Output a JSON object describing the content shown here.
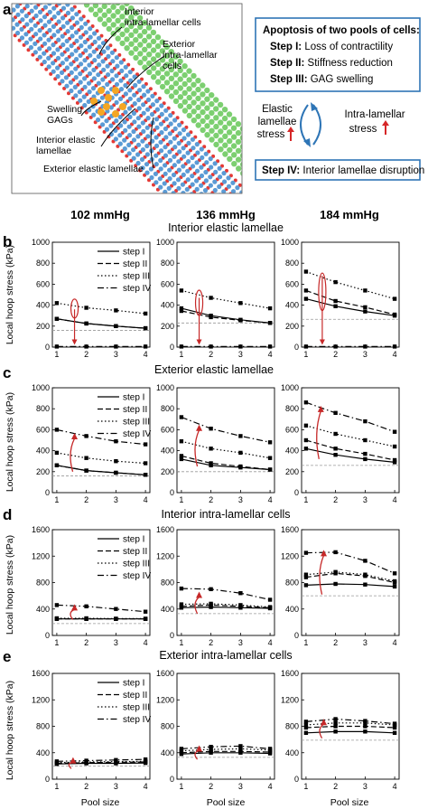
{
  "panel_a": {
    "letter": "a",
    "diagram_labels": {
      "interior_cells": [
        "Interior",
        "intra-lamellar cells"
      ],
      "exterior_cells": [
        "Exterior",
        "intra-lamellar",
        "cells"
      ],
      "swelling": [
        "Swelling",
        "GAGs"
      ],
      "interior_lamellae": [
        "Interior elastic",
        "lamellae"
      ],
      "exterior_lamellae": "Exterior elastic lamellae"
    },
    "box_title": "Apoptosis of two pools of cells:",
    "steps": [
      {
        "label": "Step I:",
        "text": " Loss of contractility"
      },
      {
        "label": "Step II:",
        "text": " Stiffness reduction"
      },
      {
        "label": "Step III:",
        "text": " GAG swelling"
      }
    ],
    "cycle_left": [
      "Elastic",
      "lamellae",
      "stress"
    ],
    "cycle_right": [
      "Intra-lamellar",
      "stress"
    ],
    "step4_label": "Step IV:",
    "step4_text": " Interior lamellae disruption",
    "colors": {
      "lamella": "#e53935",
      "cell": "#5b9bd5",
      "outer_cell": "#7ccf70",
      "gag": "#f5a623",
      "box": "#2e75b6",
      "arrow": "#2e75b6"
    }
  },
  "pressures": [
    "102 mmHg",
    "136 mmHg",
    "184 mmHg"
  ],
  "rows": [
    {
      "letter": "b",
      "title": "Interior elastic lamellae"
    },
    {
      "letter": "c",
      "title": "Exterior elastic lamellae"
    },
    {
      "letter": "d",
      "title": "Interior intra-lamellar cells"
    },
    {
      "letter": "e",
      "title": "Exterior intra-lamellar cells"
    }
  ],
  "ylabel": "Local hoop stress (kPa)",
  "xlabel": "Pool size",
  "legend": [
    "step I",
    "step II",
    "step III",
    "step IV"
  ],
  "chart_data": [
    {
      "type": "line",
      "row": "b",
      "pressure": "102 mmHg",
      "x": [
        1,
        2,
        3,
        4
      ],
      "ylim": [
        0,
        1000
      ],
      "yticks": [
        0,
        200,
        400,
        600,
        800,
        1000
      ],
      "reference": 160,
      "series": [
        {
          "name": "step I",
          "values": [
            270,
            225,
            200,
            180
          ]
        },
        {
          "name": "step II",
          "values": [
            270,
            225,
            200,
            180
          ]
        },
        {
          "name": "step III",
          "values": [
            420,
            375,
            350,
            320
          ]
        },
        {
          "name": "step IV",
          "values": [
            5,
            5,
            5,
            5
          ]
        }
      ],
      "annotation": {
        "kind": "double-arrow",
        "x": 1.6,
        "from": 360,
        "to": 30
      }
    },
    {
      "type": "line",
      "row": "b",
      "pressure": "136 mmHg",
      "x": [
        1,
        2,
        3,
        4
      ],
      "ylim": [
        0,
        1000
      ],
      "yticks": [
        0,
        200,
        400,
        600,
        800,
        1000
      ],
      "reference": 230,
      "series": [
        {
          "name": "step I",
          "values": [
            370,
            300,
            260,
            230
          ]
        },
        {
          "name": "step II",
          "values": [
            345,
            285,
            255,
            230
          ]
        },
        {
          "name": "step III",
          "values": [
            540,
            470,
            420,
            370
          ]
        },
        {
          "name": "step IV",
          "values": [
            5,
            5,
            5,
            5
          ]
        }
      ],
      "annotation": {
        "kind": "double-arrow",
        "x": 1.6,
        "from": 470,
        "to": 30
      }
    },
    {
      "type": "line",
      "row": "b",
      "pressure": "184 mmHg",
      "x": [
        1,
        2,
        3,
        4
      ],
      "ylim": [
        0,
        1000
      ],
      "yticks": [
        0,
        200,
        400,
        600,
        800,
        1000
      ],
      "reference": 265,
      "series": [
        {
          "name": "step I",
          "values": [
            460,
            390,
            340,
            300
          ]
        },
        {
          "name": "step II",
          "values": [
            540,
            440,
            380,
            310
          ]
        },
        {
          "name": "step III",
          "values": [
            720,
            620,
            540,
            460
          ]
        },
        {
          "name": "step IV",
          "values": [
            5,
            5,
            5,
            5
          ]
        }
      ],
      "annotation": {
        "kind": "double-arrow",
        "x": 1.55,
        "from": 680,
        "to": 30
      }
    },
    {
      "type": "line",
      "row": "c",
      "pressure": "102 mmHg",
      "x": [
        1,
        2,
        3,
        4
      ],
      "ylim": [
        0,
        1000
      ],
      "yticks": [
        0,
        200,
        400,
        600,
        800,
        1000
      ],
      "reference": 160,
      "series": [
        {
          "name": "step I",
          "values": [
            260,
            210,
            190,
            170
          ]
        },
        {
          "name": "step II",
          "values": [
            260,
            210,
            190,
            170
          ]
        },
        {
          "name": "step III",
          "values": [
            380,
            330,
            300,
            280
          ]
        },
        {
          "name": "step IV",
          "values": [
            600,
            540,
            490,
            460
          ]
        }
      ],
      "annotation": {
        "kind": "arrow-up",
        "x": 1.6,
        "from": 200,
        "to": 560
      }
    },
    {
      "type": "line",
      "row": "c",
      "pressure": "136 mmHg",
      "x": [
        1,
        2,
        3,
        4
      ],
      "ylim": [
        0,
        1000
      ],
      "yticks": [
        0,
        200,
        400,
        600,
        800,
        1000
      ],
      "reference": 200,
      "series": [
        {
          "name": "step I",
          "values": [
            320,
            260,
            240,
            220
          ]
        },
        {
          "name": "step II",
          "values": [
            350,
            280,
            250,
            220
          ]
        },
        {
          "name": "step III",
          "values": [
            490,
            420,
            380,
            330
          ]
        },
        {
          "name": "step IV",
          "values": [
            720,
            610,
            540,
            480
          ]
        }
      ],
      "annotation": {
        "kind": "arrow-up",
        "x": 1.6,
        "from": 250,
        "to": 640
      }
    },
    {
      "type": "line",
      "row": "c",
      "pressure": "184 mmHg",
      "x": [
        1,
        2,
        3,
        4
      ],
      "ylim": [
        0,
        1000
      ],
      "yticks": [
        0,
        200,
        400,
        600,
        800,
        1000
      ],
      "reference": 260,
      "series": [
        {
          "name": "step I",
          "values": [
            420,
            360,
            320,
            290
          ]
        },
        {
          "name": "step II",
          "values": [
            500,
            420,
            370,
            310
          ]
        },
        {
          "name": "step III",
          "values": [
            640,
            560,
            500,
            440
          ]
        },
        {
          "name": "step IV",
          "values": [
            860,
            760,
            680,
            580
          ]
        }
      ],
      "annotation": {
        "kind": "arrow-up",
        "x": 1.5,
        "from": 320,
        "to": 820
      }
    },
    {
      "type": "line",
      "row": "d",
      "pressure": "102 mmHg",
      "x": [
        1,
        2,
        3,
        4
      ],
      "ylim": [
        0,
        1600
      ],
      "yticks": [
        0,
        400,
        800,
        1200,
        1600
      ],
      "reference": 180,
      "series": [
        {
          "name": "step I",
          "values": [
            250,
            250,
            250,
            250
          ]
        },
        {
          "name": "step II",
          "values": [
            250,
            250,
            250,
            250
          ]
        },
        {
          "name": "step III",
          "values": [
            260,
            260,
            255,
            255
          ]
        },
        {
          "name": "step IV",
          "values": [
            460,
            440,
            400,
            360
          ]
        }
      ],
      "annotation": {
        "kind": "arrow-up",
        "x": 1.6,
        "from": 240,
        "to": 460
      }
    },
    {
      "type": "line",
      "row": "d",
      "pressure": "136 mmHg",
      "x": [
        1,
        2,
        3,
        4
      ],
      "ylim": [
        0,
        1600
      ],
      "yticks": [
        0,
        400,
        800,
        1200,
        1600
      ],
      "reference": 330,
      "series": [
        {
          "name": "step I",
          "values": [
            420,
            430,
            420,
            410
          ]
        },
        {
          "name": "step II",
          "values": [
            440,
            460,
            440,
            420
          ]
        },
        {
          "name": "step III",
          "values": [
            470,
            480,
            460,
            430
          ]
        },
        {
          "name": "step IV",
          "values": [
            710,
            700,
            640,
            540
          ]
        }
      ],
      "annotation": {
        "kind": "arrow-up",
        "x": 1.6,
        "from": 330,
        "to": 650
      }
    },
    {
      "type": "line",
      "row": "d",
      "pressure": "184 mmHg",
      "x": [
        1,
        2,
        3,
        4
      ],
      "ylim": [
        0,
        1600
      ],
      "yticks": [
        0,
        400,
        800,
        1200,
        1600
      ],
      "reference": 600,
      "series": [
        {
          "name": "step I",
          "values": [
            760,
            780,
            770,
            740
          ]
        },
        {
          "name": "step II",
          "values": [
            880,
            940,
            900,
            800
          ]
        },
        {
          "name": "step III",
          "values": [
            920,
            960,
            920,
            820
          ]
        },
        {
          "name": "step IV",
          "values": [
            1250,
            1260,
            1130,
            940
          ]
        }
      ],
      "annotation": {
        "kind": "arrow-up",
        "x": 1.6,
        "from": 620,
        "to": 1280
      }
    },
    {
      "type": "line",
      "row": "e",
      "pressure": "102 mmHg",
      "x": [
        1,
        2,
        3,
        4
      ],
      "ylim": [
        0,
        1600
      ],
      "yticks": [
        0,
        400,
        800,
        1200,
        1600
      ],
      "reference": 200,
      "series": [
        {
          "name": "step I",
          "values": [
            230,
            240,
            240,
            245
          ]
        },
        {
          "name": "step II",
          "values": [
            240,
            250,
            255,
            260
          ]
        },
        {
          "name": "step III",
          "values": [
            250,
            260,
            265,
            270
          ]
        },
        {
          "name": "step IV",
          "values": [
            270,
            280,
            290,
            300
          ]
        }
      ],
      "annotation": {
        "kind": "arrow-up",
        "x": 1.55,
        "from": 160,
        "to": 320
      }
    },
    {
      "type": "line",
      "row": "e",
      "pressure": "136 mmHg",
      "x": [
        1,
        2,
        3,
        4
      ],
      "ylim": [
        0,
        1600
      ],
      "yticks": [
        0,
        400,
        800,
        1200,
        1600
      ],
      "reference": 330,
      "series": [
        {
          "name": "step I",
          "values": [
            380,
            400,
            400,
            390
          ]
        },
        {
          "name": "step II",
          "values": [
            400,
            420,
            420,
            410
          ]
        },
        {
          "name": "step III",
          "values": [
            430,
            450,
            460,
            440
          ]
        },
        {
          "name": "step IV",
          "values": [
            460,
            490,
            500,
            460
          ]
        }
      ],
      "annotation": {
        "kind": "arrow-up",
        "x": 1.6,
        "from": 300,
        "to": 500
      }
    },
    {
      "type": "line",
      "row": "e",
      "pressure": "184 mmHg",
      "x": [
        1,
        2,
        3,
        4
      ],
      "ylim": [
        0,
        1600
      ],
      "yticks": [
        0,
        400,
        800,
        1200,
        1600
      ],
      "reference": 590,
      "series": [
        {
          "name": "step I",
          "values": [
            700,
            720,
            720,
            700
          ]
        },
        {
          "name": "step II",
          "values": [
            780,
            800,
            800,
            780
          ]
        },
        {
          "name": "step III",
          "values": [
            820,
            850,
            850,
            820
          ]
        },
        {
          "name": "step IV",
          "values": [
            870,
            910,
            880,
            840
          ]
        }
      ],
      "annotation": {
        "kind": "arrow-up",
        "x": 1.6,
        "from": 620,
        "to": 900
      }
    }
  ]
}
